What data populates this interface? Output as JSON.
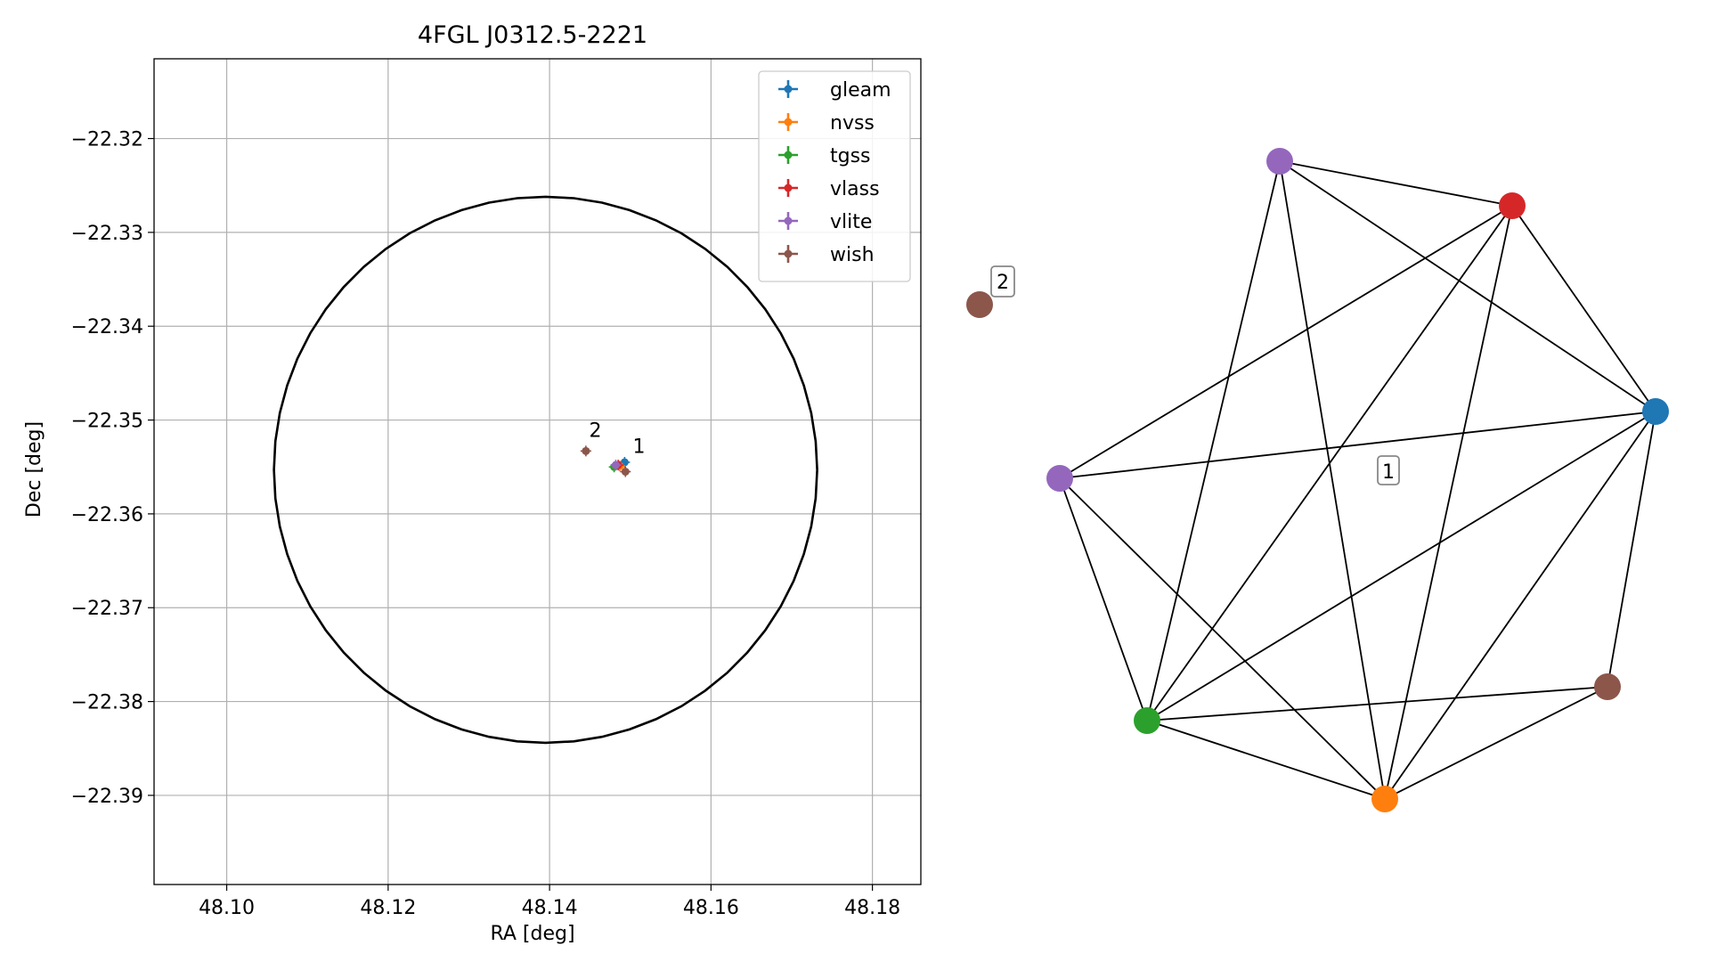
{
  "chart_data": [
    {
      "type": "scatter",
      "title": "4FGL J0312.5-2221",
      "xlabel": "RA [deg]",
      "ylabel": "Dec [deg]",
      "xlim": [
        48.091,
        48.186
      ],
      "ylim": [
        -22.3995,
        -22.3115
      ],
      "xticks": [
        48.1,
        48.12,
        48.14,
        48.16,
        48.18
      ],
      "xtick_labels": [
        "48.10",
        "48.12",
        "48.14",
        "48.16",
        "48.18"
      ],
      "yticks": [
        -22.32,
        -22.33,
        -22.34,
        -22.35,
        -22.36,
        -22.37,
        -22.38,
        -22.39
      ],
      "ytick_labels": [
        "−22.32",
        "−22.33",
        "−22.34",
        "−22.35",
        "−22.36",
        "−22.37",
        "−22.38",
        "−22.39"
      ],
      "grid": true,
      "legend_position": "upper right",
      "circle": {
        "center": [
          48.1395,
          -22.3553
        ],
        "radius_dec": 0.0291
      },
      "series": [
        {
          "name": "gleam",
          "color": "#1f77b4",
          "points": [
            {
              "x": 48.1493,
              "y": -22.3545
            }
          ]
        },
        {
          "name": "nvss",
          "color": "#ff7f0e",
          "points": [
            {
              "x": 48.1487,
              "y": -22.3549
            }
          ]
        },
        {
          "name": "tgss",
          "color": "#2ca02c",
          "points": [
            {
              "x": 48.148,
              "y": -22.355
            }
          ]
        },
        {
          "name": "vlass",
          "color": "#d62728",
          "points": [
            {
              "x": 48.1485,
              "y": -22.3548
            }
          ]
        },
        {
          "name": "vlite",
          "color": "#9467bd",
          "points": [
            {
              "x": 48.1482,
              "y": -22.3548
            }
          ]
        },
        {
          "name": "wish",
          "color": "#8c564b",
          "points": [
            {
              "x": 48.1445,
              "y": -22.3533
            },
            {
              "x": 48.1494,
              "y": -22.3555
            }
          ]
        }
      ],
      "annotations": [
        {
          "text": "2",
          "x": 48.1449,
          "y": -22.3518
        },
        {
          "text": "1",
          "x": 48.1503,
          "y": -22.3535
        }
      ]
    },
    {
      "type": "network",
      "nodes": [
        {
          "id": "wish_a",
          "color": "#8c564b",
          "label": "2"
        },
        {
          "id": "vlite_a",
          "color": "#9467bd"
        },
        {
          "id": "vlass",
          "color": "#d62728"
        },
        {
          "id": "gleam",
          "color": "#1f77b4"
        },
        {
          "id": "vlite_b",
          "color": "#9467bd"
        },
        {
          "id": "wish_b",
          "color": "#8c564b"
        },
        {
          "id": "tgss",
          "color": "#2ca02c"
        },
        {
          "id": "nvss",
          "color": "#ff7f0e"
        }
      ],
      "edges": [
        [
          "vlite_a",
          "vlass"
        ],
        [
          "vlite_a",
          "gleam"
        ],
        [
          "vlite_a",
          "tgss"
        ],
        [
          "vlite_a",
          "nvss"
        ],
        [
          "vlass",
          "gleam"
        ],
        [
          "vlass",
          "vlite_b"
        ],
        [
          "vlass",
          "tgss"
        ],
        [
          "vlass",
          "nvss"
        ],
        [
          "gleam",
          "vlite_b"
        ],
        [
          "gleam",
          "tgss"
        ],
        [
          "gleam",
          "nvss"
        ],
        [
          "gleam",
          "wish_b"
        ],
        [
          "vlite_b",
          "tgss"
        ],
        [
          "vlite_b",
          "nvss"
        ],
        [
          "tgss",
          "nvss"
        ],
        [
          "tgss",
          "wish_b"
        ],
        [
          "nvss",
          "wish_b"
        ]
      ],
      "cluster_labels": [
        "1"
      ]
    }
  ]
}
